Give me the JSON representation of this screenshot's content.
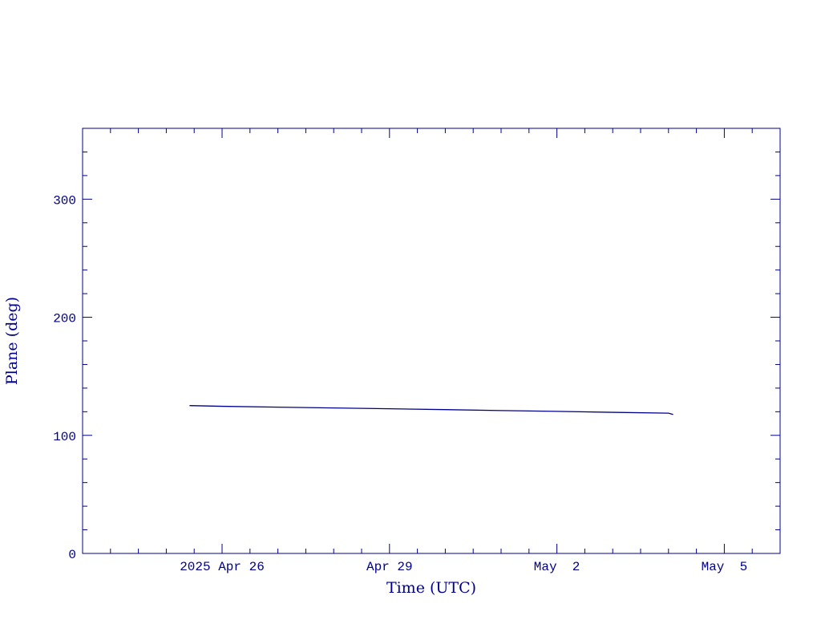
{
  "chart_data": {
    "type": "line",
    "xlabel": "Time (UTC)",
    "ylabel": "Plane (deg)",
    "x": [
      "2025-04-25T10:00Z",
      "2025-04-26T00:00Z",
      "2025-04-27T00:00Z",
      "2025-04-28T00:00Z",
      "2025-04-29T00:00Z",
      "2025-04-30T00:00Z",
      "2025-05-01T00:00Z",
      "2025-05-02T00:00Z",
      "2025-05-03T00:00Z",
      "2025-05-04T00:00Z",
      "2025-05-04T02:00Z"
    ],
    "values": [
      125.2,
      124.6,
      123.9,
      123.2,
      122.5,
      121.8,
      121.0,
      120.3,
      119.5,
      118.8,
      117.7
    ],
    "color": "#00008b",
    "xlim": [
      "2025-04-23T12:00Z",
      "2025-05-06T00:00Z"
    ],
    "xticks": [
      {
        "value": "2025-04-26T00:00Z",
        "label": "2025 Apr 26"
      },
      {
        "value": "2025-04-29T00:00Z",
        "label": "Apr 29"
      },
      {
        "value": "2025-05-02T00:00Z",
        "label": "May  2"
      },
      {
        "value": "2025-05-05T00:00Z",
        "label": "May  5"
      }
    ],
    "xminorticks": [
      "2025-04-24T00:00Z",
      "2025-04-24T12:00Z",
      "2025-04-25T00:00Z",
      "2025-04-25T12:00Z",
      "2025-04-26T12:00Z",
      "2025-04-27T00:00Z",
      "2025-04-27T12:00Z",
      "2025-04-28T00:00Z",
      "2025-04-28T12:00Z",
      "2025-04-29T12:00Z",
      "2025-04-30T00:00Z",
      "2025-04-30T12:00Z",
      "2025-05-01T00:00Z",
      "2025-05-01T12:00Z",
      "2025-05-02T12:00Z",
      "2025-05-03T00:00Z",
      "2025-05-03T12:00Z",
      "2025-05-04T00:00Z",
      "2025-05-04T12:00Z",
      "2025-05-05T12:00Z"
    ],
    "ylim": [
      0,
      360
    ],
    "yticks": [
      0,
      100,
      200,
      300
    ],
    "yminorticks": [
      20,
      40,
      60,
      80,
      120,
      140,
      160,
      180,
      220,
      240,
      260,
      280,
      320,
      340
    ]
  }
}
